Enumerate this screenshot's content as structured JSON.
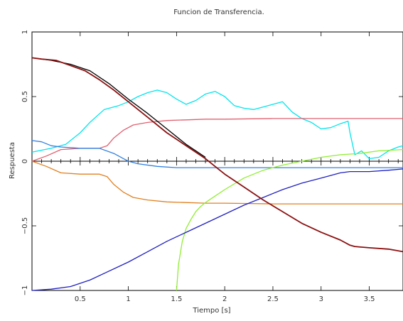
{
  "chart_data": {
    "type": "line",
    "title": "Funcion de Transferencia.",
    "xlabel": "Tiempo [s]",
    "ylabel": "Respuesta",
    "xlim": [
      0,
      3.85
    ],
    "ylim": [
      -1,
      1
    ],
    "x_ticks": [
      0.5,
      1,
      1.5,
      2,
      2.5,
      3,
      3.5
    ],
    "x_tick_labels": [
      "0.5",
      "1",
      "1.5",
      "2",
      "2.5",
      "3",
      "3.5"
    ],
    "y_ticks": [
      -1,
      -0.5,
      0,
      0.5,
      1
    ],
    "y_tick_labels": [
      "−1",
      "−0.5",
      "0",
      "0.5",
      "1"
    ],
    "zero_axis": true,
    "grid": false,
    "legend": "none",
    "series": [
      {
        "color": "#00e5ee",
        "x": [
          0,
          0.2,
          0.35,
          0.5,
          0.6,
          0.75,
          0.9,
          1.0,
          1.1,
          1.2,
          1.3,
          1.4,
          1.5,
          1.6,
          1.7,
          1.8,
          1.9,
          2.0,
          2.1,
          2.2,
          2.3,
          2.4,
          2.5,
          2.6,
          2.7,
          2.8,
          2.9,
          3.0,
          3.1,
          3.2,
          3.28,
          3.3,
          3.35,
          3.42,
          3.5,
          3.6,
          3.7,
          3.8,
          3.85
        ],
        "y": [
          0.07,
          0.1,
          0.13,
          0.22,
          0.3,
          0.4,
          0.43,
          0.46,
          0.5,
          0.53,
          0.55,
          0.53,
          0.48,
          0.44,
          0.47,
          0.52,
          0.54,
          0.5,
          0.43,
          0.41,
          0.4,
          0.42,
          0.44,
          0.46,
          0.38,
          0.33,
          0.3,
          0.25,
          0.26,
          0.29,
          0.31,
          0.22,
          0.05,
          0.08,
          0.02,
          0.03,
          0.08,
          0.11,
          0.12
        ]
      },
      {
        "color": "#e06070",
        "x": [
          0,
          0.15,
          0.3,
          0.5,
          0.7,
          0.78,
          0.85,
          0.95,
          1.05,
          1.2,
          1.4,
          1.6,
          1.8,
          2.0,
          2.5,
          3.0,
          3.5,
          3.85
        ],
        "y": [
          0.0,
          0.04,
          0.09,
          0.1,
          0.1,
          0.12,
          0.18,
          0.24,
          0.28,
          0.3,
          0.315,
          0.32,
          0.325,
          0.325,
          0.33,
          0.33,
          0.33,
          0.33
        ]
      },
      {
        "color": "#e08020",
        "x": [
          0,
          0.15,
          0.3,
          0.5,
          0.7,
          0.78,
          0.85,
          0.95,
          1.05,
          1.2,
          1.4,
          1.6,
          1.8,
          2.0,
          2.5,
          3.0,
          3.5,
          3.85
        ],
        "y": [
          0.0,
          -0.04,
          -0.09,
          -0.1,
          -0.1,
          -0.12,
          -0.18,
          -0.24,
          -0.28,
          -0.3,
          -0.315,
          -0.32,
          -0.325,
          -0.325,
          -0.33,
          -0.33,
          -0.33,
          -0.33
        ]
      },
      {
        "color": "#3080e0",
        "x": [
          0,
          0.1,
          0.2,
          0.3,
          0.5,
          0.7,
          0.85,
          0.95,
          1.0,
          1.1,
          1.3,
          1.5,
          1.8,
          2.0,
          2.5,
          3.0,
          3.5,
          3.85
        ],
        "y": [
          0.16,
          0.15,
          0.12,
          0.11,
          0.1,
          0.1,
          0.06,
          0.02,
          0.0,
          -0.02,
          -0.04,
          -0.05,
          -0.05,
          -0.05,
          -0.05,
          -0.05,
          -0.05,
          -0.05
        ]
      },
      {
        "color": "#90ee30",
        "x": [
          1.5,
          1.52,
          1.56,
          1.6,
          1.65,
          1.7,
          1.75,
          1.8,
          1.9,
          2.0,
          2.2,
          2.4,
          2.6,
          2.8,
          3.0,
          3.2,
          3.4,
          3.6,
          3.85
        ],
        "y": [
          -1.0,
          -0.8,
          -0.62,
          -0.52,
          -0.45,
          -0.39,
          -0.35,
          -0.32,
          -0.27,
          -0.22,
          -0.13,
          -0.07,
          -0.03,
          0.0,
          0.03,
          0.05,
          0.06,
          0.08,
          0.09
        ]
      },
      {
        "color": "#2020c0",
        "x": [
          0,
          0.2,
          0.4,
          0.6,
          0.8,
          1.0,
          1.2,
          1.4,
          1.6,
          1.8,
          2.0,
          2.2,
          2.4,
          2.6,
          2.8,
          3.0,
          3.2,
          3.3,
          3.5,
          3.7,
          3.85
        ],
        "y": [
          -1.0,
          -0.99,
          -0.97,
          -0.92,
          -0.85,
          -0.78,
          -0.7,
          -0.62,
          -0.55,
          -0.48,
          -0.41,
          -0.34,
          -0.28,
          -0.22,
          -0.17,
          -0.13,
          -0.09,
          -0.08,
          -0.08,
          -0.07,
          -0.06
        ]
      },
      {
        "color": "#000000",
        "x": [
          0,
          0.2,
          0.4,
          0.6,
          0.8,
          1.0,
          1.2,
          1.4,
          1.6,
          1.8
        ],
        "y": [
          0.8,
          0.78,
          0.75,
          0.7,
          0.6,
          0.48,
          0.37,
          0.25,
          0.13,
          0.03
        ]
      },
      {
        "color": "#8b1010",
        "x": [
          0,
          0.1,
          0.25,
          0.4,
          0.55,
          0.7,
          0.85,
          1.0,
          1.2,
          1.4,
          1.6,
          1.8,
          1.9,
          2.0,
          2.2,
          2.4,
          2.6,
          2.8,
          3.0,
          3.2,
          3.3,
          3.35,
          3.5,
          3.7,
          3.85
        ],
        "y": [
          0.8,
          0.79,
          0.78,
          0.74,
          0.7,
          0.63,
          0.55,
          0.46,
          0.34,
          0.22,
          0.12,
          0.02,
          -0.04,
          -0.1,
          -0.2,
          -0.3,
          -0.39,
          -0.48,
          -0.55,
          -0.61,
          -0.65,
          -0.66,
          -0.67,
          -0.68,
          -0.7
        ]
      }
    ]
  }
}
